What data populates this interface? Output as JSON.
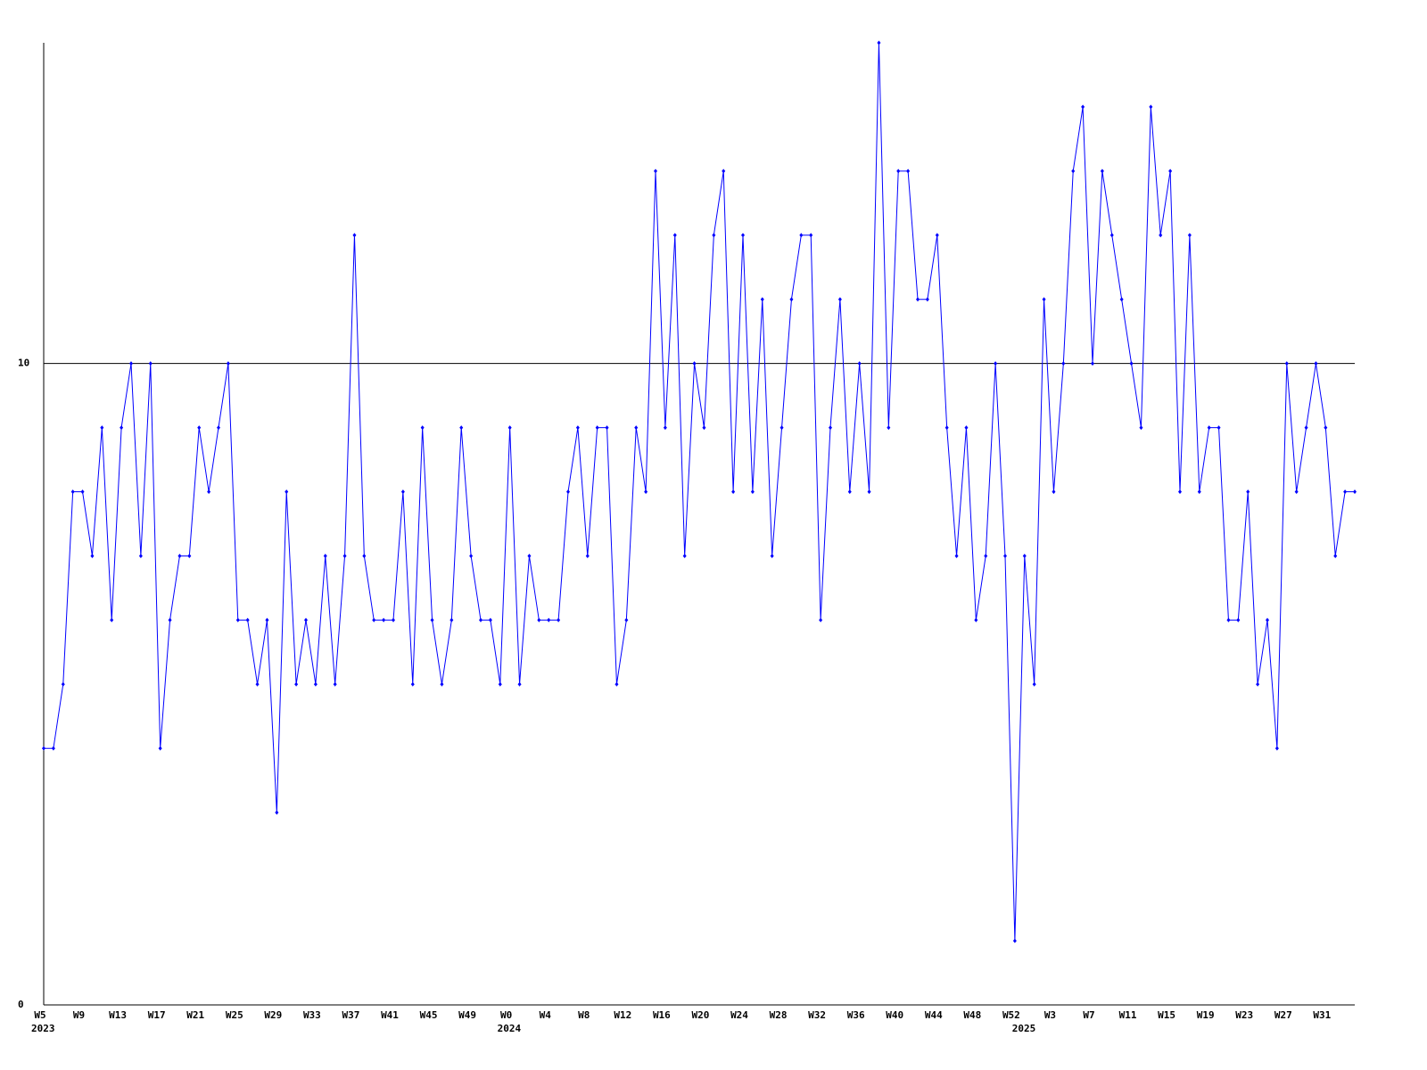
{
  "chart_data": {
    "type": "line",
    "color": "#0000ff",
    "grid": true,
    "ylim": [
      0,
      15
    ],
    "yticks": [
      0,
      10
    ],
    "categories": [
      "W5",
      null,
      null,
      null,
      "W9",
      null,
      null,
      null,
      "W13",
      null,
      null,
      null,
      "W17",
      null,
      null,
      null,
      "W21",
      null,
      null,
      null,
      "W25",
      null,
      null,
      null,
      "W29",
      null,
      null,
      null,
      "W33",
      null,
      null,
      null,
      "W37",
      null,
      null,
      null,
      "W41",
      null,
      null,
      null,
      "W45",
      null,
      null,
      null,
      "W49",
      null,
      null,
      null,
      "W0",
      null,
      null,
      null,
      "W4",
      null,
      null,
      null,
      "W8",
      null,
      null,
      null,
      "W12",
      null,
      null,
      null,
      "W16",
      null,
      null,
      null,
      "W20",
      null,
      null,
      null,
      "W24",
      null,
      null,
      null,
      "W28",
      null,
      null,
      null,
      "W32",
      null,
      null,
      null,
      "W36",
      null,
      null,
      null,
      "W40",
      null,
      null,
      null,
      "W44",
      null,
      null,
      null,
      "W48",
      null,
      null,
      null,
      "W52",
      null,
      null,
      null,
      "W3",
      null,
      null,
      null,
      "W7",
      null,
      null,
      null,
      "W11",
      null,
      null,
      null,
      "W15",
      null,
      null,
      null,
      "W19",
      null,
      null,
      null,
      "W23",
      null,
      null,
      null,
      "W27",
      null,
      null,
      null,
      "W31",
      null,
      null,
      null
    ],
    "years": [
      "2023",
      null,
      null,
      null,
      null,
      null,
      null,
      null,
      null,
      null,
      null,
      null,
      null,
      null,
      null,
      null,
      null,
      null,
      null,
      null,
      null,
      null,
      null,
      null,
      null,
      null,
      null,
      null,
      null,
      null,
      null,
      null,
      null,
      null,
      null,
      null,
      null,
      null,
      null,
      null,
      null,
      null,
      null,
      null,
      null,
      null,
      null,
      null,
      "2024",
      null,
      null,
      null,
      null,
      null,
      null,
      null,
      null,
      null,
      null,
      null,
      null,
      null,
      null,
      null,
      null,
      null,
      null,
      null,
      null,
      null,
      null,
      null,
      null,
      null,
      null,
      null,
      null,
      null,
      null,
      null,
      null,
      null,
      null,
      null,
      null,
      null,
      null,
      null,
      null,
      null,
      null,
      null,
      null,
      null,
      null,
      null,
      null,
      null,
      null,
      null,
      null,
      "2025",
      null,
      null,
      null,
      null,
      null,
      null,
      null,
      null,
      null,
      null,
      null,
      null,
      null,
      null,
      null,
      null,
      null,
      null,
      null,
      null,
      null,
      null,
      null,
      null,
      null,
      null,
      null,
      null,
      null,
      null,
      null,
      null,
      null,
      null
    ],
    "values": [
      4,
      4,
      5,
      8,
      8,
      7,
      9,
      6,
      9,
      10,
      7,
      10,
      4,
      6,
      7,
      7,
      9,
      8,
      9,
      10,
      6,
      6,
      5,
      6,
      3,
      8,
      5,
      6,
      5,
      7,
      5,
      7,
      12,
      7,
      6,
      6,
      6,
      8,
      5,
      9,
      6,
      5,
      6,
      9,
      7,
      6,
      6,
      5,
      9,
      5,
      7,
      6,
      6,
      6,
      8,
      9,
      7,
      9,
      9,
      5,
      6,
      9,
      8,
      13,
      9,
      12,
      7,
      10,
      9,
      12,
      13,
      8,
      12,
      8,
      11,
      7,
      9,
      11,
      12,
      12,
      6,
      9,
      11,
      8,
      10,
      8,
      15,
      9,
      13,
      13,
      11,
      11,
      12,
      9,
      7,
      9,
      6,
      7,
      10,
      7,
      1,
      7,
      5,
      11,
      8,
      10,
      13,
      14,
      10,
      13,
      12,
      11,
      10,
      9,
      14,
      12,
      13,
      8,
      12,
      8,
      9,
      9,
      6,
      6,
      8,
      5,
      6,
      4,
      10,
      8,
      9,
      10,
      9,
      7,
      8,
      8
    ]
  }
}
